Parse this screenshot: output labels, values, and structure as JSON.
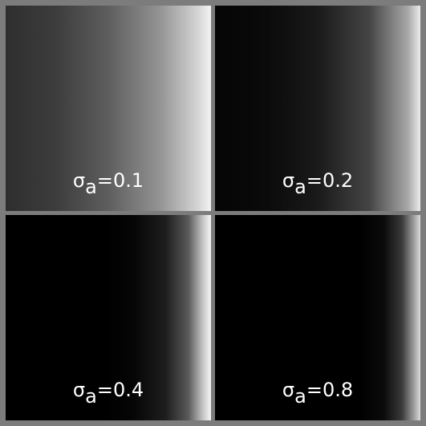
{
  "panels": [
    {
      "symbol": "σ",
      "subscript": "a",
      "value": "=0.1"
    },
    {
      "symbol": "σ",
      "subscript": "a",
      "value": "=0.2"
    },
    {
      "symbol": "σ",
      "subscript": "a",
      "value": "=0.4"
    },
    {
      "symbol": "σ",
      "subscript": "a",
      "value": "=0.8"
    }
  ]
}
